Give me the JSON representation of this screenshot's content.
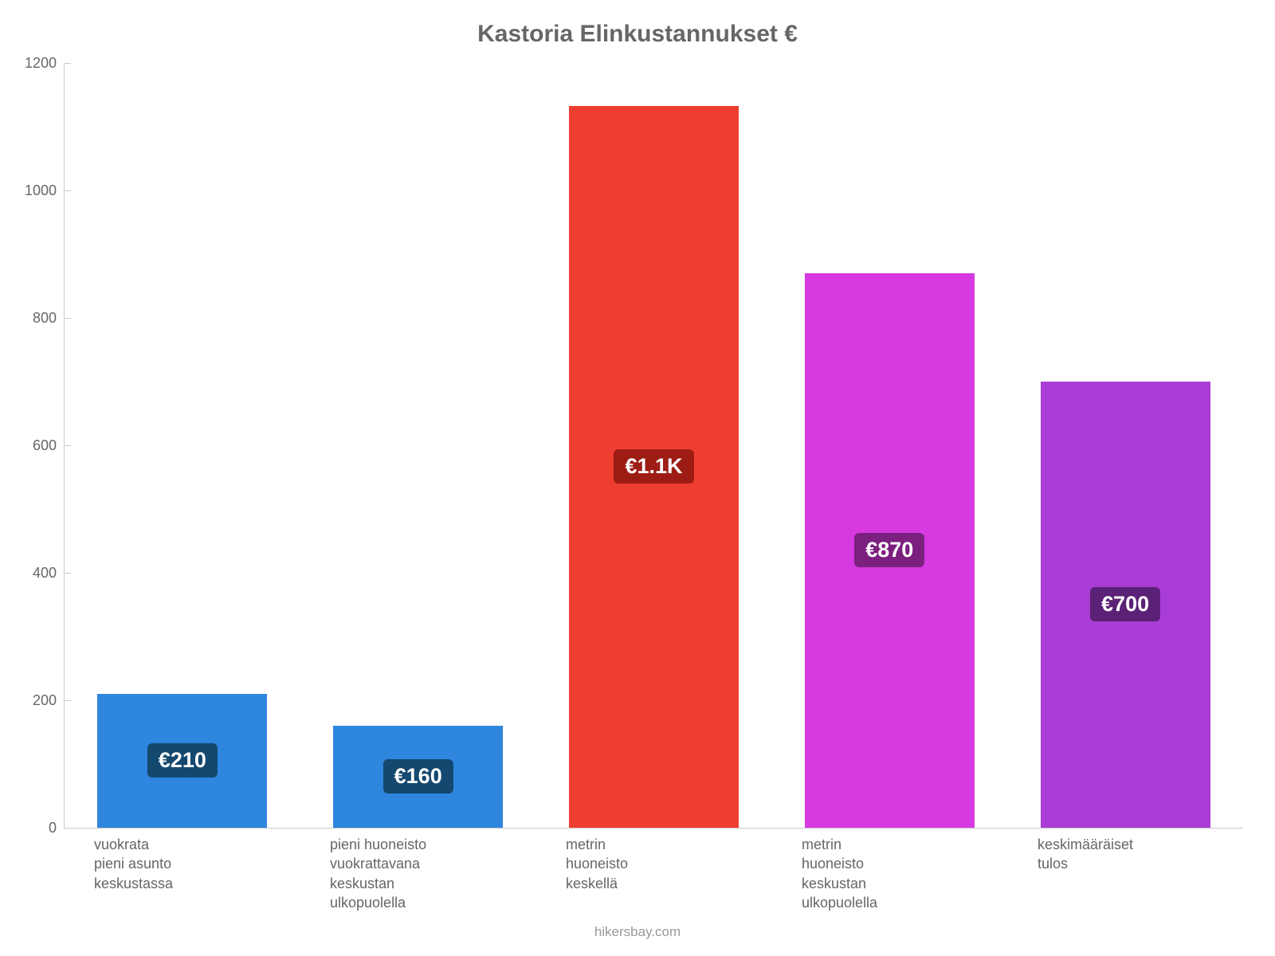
{
  "chart": {
    "type": "bar",
    "title": "Kastoria Elinkustannukset €",
    "title_fontsize": 30,
    "title_color": "#666666",
    "background_color": "#ffffff",
    "axis_color": "#c9c9c9",
    "tick_label_color": "#666666",
    "tick_fontsize": 18,
    "ylim": [
      0,
      1200
    ],
    "ytick_step": 200,
    "yticks": [
      0,
      200,
      400,
      600,
      800,
      1000,
      1200
    ],
    "bar_width": 0.72,
    "categories": [
      "vuokrata\npieni asunto\nkeskustassa",
      "pieni huoneisto\nvuokrattavana\nkeskustan\nulkopuolella",
      "metrin\nhuoneisto\nkeskellä",
      "metrin\nhuoneisto\nkeskustan\nulkopuolella",
      "keskimääräiset\ntulos"
    ],
    "values": [
      210,
      160,
      1133,
      870,
      700
    ],
    "bar_colors": [
      "#2e86de",
      "#2e86de",
      "#ee3e32",
      "#d63ae0",
      "#a93dd5"
    ],
    "badge_labels": [
      "€210",
      "€160",
      "€1.1K",
      "€870",
      "€700"
    ],
    "badge_bg_colors": [
      "#14486f",
      "#14486f",
      "#9d1d14",
      "#7b207f",
      "#5b2176"
    ],
    "badge_text_color": "#ffffff",
    "badge_fontsize": 27,
    "credit": "hikersbay.com",
    "credit_color": "#999999"
  }
}
